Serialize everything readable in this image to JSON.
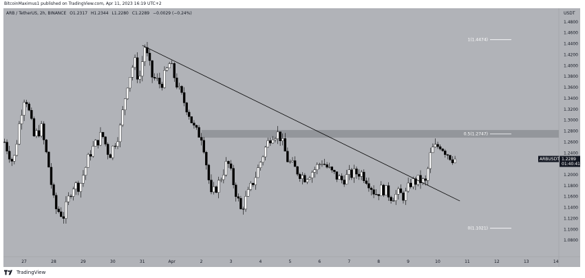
{
  "publication": {
    "text": "BitcoinMaximus1 published on TradingView.com, Apr 11, 2023 16:19 UTC+2"
  },
  "symbol_bar": {
    "title": "ARB / TetherUS, 2h, BINANCE",
    "ohlc": [
      {
        "key": "O",
        "value": "1.2317"
      },
      {
        "key": "H",
        "value": "1.2344"
      },
      {
        "key": "L",
        "value": "1.2280"
      },
      {
        "key": "C",
        "value": "1.2289"
      }
    ],
    "change": "−0.0029 (−0.24%)"
  },
  "currency": "USDT",
  "last_price": {
    "symbol": "ARBUSDT",
    "price": "1.2289",
    "countdown": "01:40:41"
  },
  "footer": {
    "brand": "TradingView"
  },
  "colors": {
    "background": "#b1b3b8",
    "bull": "#ffffff",
    "bear": "#000000",
    "trendline": "#000000",
    "zone": "#8e9095",
    "axis_text": "#131722"
  },
  "chart_data": {
    "type": "candlestick",
    "interval": "2h",
    "x_axis": {
      "tick_labels": [
        "27",
        "28",
        "29",
        "30",
        "31",
        "Apr",
        "2",
        "3",
        "4",
        "5",
        "6",
        "7",
        "8",
        "9",
        "10",
        "11",
        "12",
        "13",
        "14"
      ],
      "start_day_offset": 26.3,
      "end_day_offset": 45.1
    },
    "y_axis": {
      "ylim": [
        1.05,
        1.505
      ],
      "tick_labels": [
        "1.0800",
        "1.1000",
        "1.1200",
        "1.1400",
        "1.1600",
        "1.1800",
        "1.2000",
        "1.2200",
        "1.2400",
        "1.2600",
        "1.2800",
        "1.3000",
        "1.3200",
        "1.3400",
        "1.3600",
        "1.3800",
        "1.4000",
        "1.4200",
        "1.4400",
        "1.4600",
        "1.4800"
      ],
      "tick_values": [
        1.08,
        1.1,
        1.12,
        1.14,
        1.16,
        1.18,
        1.2,
        1.22,
        1.24,
        1.26,
        1.28,
        1.3,
        1.32,
        1.34,
        1.36,
        1.38,
        1.4,
        1.42,
        1.44,
        1.46,
        1.48
      ]
    },
    "fib_levels": [
      {
        "label": "1(1.4474)",
        "value": 1.4474
      },
      {
        "label": "0.5(1.2747)",
        "value": 1.2747
      },
      {
        "label": "0(1.1021)",
        "value": 1.1021
      }
    ],
    "resistance_zone": {
      "low": 1.268,
      "high": 1.282
    },
    "trendline": {
      "start": {
        "day": 31.0,
        "price": 1.437
      },
      "end": {
        "day": 41.75,
        "price": 1.152
      }
    },
    "price_path": [
      {
        "day": 26.3,
        "price": 1.26
      },
      {
        "day": 26.6,
        "price": 1.22
      },
      {
        "day": 26.85,
        "price": 1.31
      },
      {
        "day": 27.0,
        "price": 1.35
      },
      {
        "day": 27.3,
        "price": 1.27
      },
      {
        "day": 27.55,
        "price": 1.285
      },
      {
        "day": 27.8,
        "price": 1.215
      },
      {
        "day": 28.0,
        "price": 1.14
      },
      {
        "day": 28.3,
        "price": 1.125
      },
      {
        "day": 28.6,
        "price": 1.18
      },
      {
        "day": 28.85,
        "price": 1.18
      },
      {
        "day": 29.2,
        "price": 1.24
      },
      {
        "day": 29.6,
        "price": 1.275
      },
      {
        "day": 29.85,
        "price": 1.235
      },
      {
        "day": 30.2,
        "price": 1.28
      },
      {
        "day": 30.45,
        "price": 1.365
      },
      {
        "day": 30.7,
        "price": 1.41
      },
      {
        "day": 30.85,
        "price": 1.37
      },
      {
        "day": 31.05,
        "price": 1.435
      },
      {
        "day": 31.3,
        "price": 1.38
      },
      {
        "day": 31.6,
        "price": 1.365
      },
      {
        "day": 31.9,
        "price": 1.405
      },
      {
        "day": 32.2,
        "price": 1.355
      },
      {
        "day": 32.5,
        "price": 1.32
      },
      {
        "day": 32.75,
        "price": 1.28
      },
      {
        "day": 33.0,
        "price": 1.27
      },
      {
        "day": 33.3,
        "price": 1.16
      },
      {
        "day": 33.55,
        "price": 1.185
      },
      {
        "day": 33.85,
        "price": 1.225
      },
      {
        "day": 34.1,
        "price": 1.175
      },
      {
        "day": 34.3,
        "price": 1.135
      },
      {
        "day": 34.55,
        "price": 1.165
      },
      {
        "day": 34.85,
        "price": 1.205
      },
      {
        "day": 35.1,
        "price": 1.245
      },
      {
        "day": 35.35,
        "price": 1.275
      },
      {
        "day": 35.6,
        "price": 1.275
      },
      {
        "day": 35.9,
        "price": 1.225
      },
      {
        "day": 36.15,
        "price": 1.21
      },
      {
        "day": 36.45,
        "price": 1.195
      },
      {
        "day": 36.8,
        "price": 1.21
      },
      {
        "day": 37.05,
        "price": 1.225
      },
      {
        "day": 37.35,
        "price": 1.205
      },
      {
        "day": 37.7,
        "price": 1.19
      },
      {
        "day": 38.0,
        "price": 1.2
      },
      {
        "day": 38.35,
        "price": 1.205
      },
      {
        "day": 38.6,
        "price": 1.19
      },
      {
        "day": 38.85,
        "price": 1.165
      },
      {
        "day": 39.1,
        "price": 1.175
      },
      {
        "day": 39.4,
        "price": 1.16
      },
      {
        "day": 39.65,
        "price": 1.165
      },
      {
        "day": 39.85,
        "price": 1.16
      },
      {
        "day": 40.05,
        "price": 1.185
      },
      {
        "day": 40.35,
        "price": 1.19
      },
      {
        "day": 40.55,
        "price": 1.185
      },
      {
        "day": 40.75,
        "price": 1.245
      },
      {
        "day": 41.05,
        "price": 1.255
      },
      {
        "day": 41.25,
        "price": 1.242
      },
      {
        "day": 41.45,
        "price": 1.231
      },
      {
        "day": 41.6,
        "price": 1.2289
      }
    ]
  }
}
